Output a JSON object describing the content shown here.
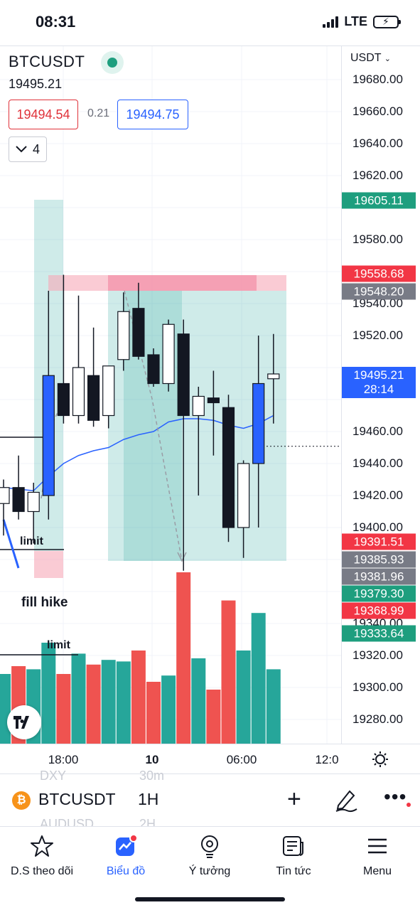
{
  "status_bar": {
    "time": "08:31",
    "network": "LTE"
  },
  "symbol": {
    "name": "BTCUSDT",
    "last_price": "19495.21",
    "bid": "19494.54",
    "spread": "0.21",
    "ask": "19494.75",
    "indicator_count": "4"
  },
  "price_axis": {
    "currency": "USDT",
    "ticks": [
      "19680.00",
      "19660.00",
      "19640.00",
      "19620.00",
      "19580.00",
      "19540.00",
      "19520.00",
      "19460.00",
      "19440.00",
      "19420.00",
      "19400.00",
      "19340.00",
      "19320.00",
      "19300.00",
      "19280.00"
    ],
    "badges": [
      {
        "value": "19605.11",
        "color": "#1e9e7e"
      },
      {
        "value": "19558.68",
        "color": "#f23645"
      },
      {
        "value": "19548.20",
        "color": "#787b86"
      },
      {
        "value": "19495.21",
        "sub": "28:14",
        "color": "#2962ff"
      },
      {
        "value": "19391.51",
        "color": "#f23645"
      },
      {
        "value": "19385.93",
        "color": "#787b86"
      },
      {
        "value": "19381.96",
        "color": "#787b86"
      },
      {
        "value": "19379.30",
        "color": "#1e9e7e"
      },
      {
        "value": "19368.99",
        "color": "#f23645"
      },
      {
        "value": "19333.64",
        "color": "#1e9e7e"
      }
    ]
  },
  "time_axis": {
    "ticks": [
      "18:00",
      "10",
      "06:00",
      "12:0"
    ]
  },
  "annotations": {
    "limit_1": "limit",
    "fill_hike": "fill hike",
    "limit_2": "limit"
  },
  "chart_data": {
    "type": "candlestick",
    "interval": "1H",
    "candles": [
      {
        "o": 19415,
        "h": 19430,
        "l": 19395,
        "c": 19425
      },
      {
        "o": 19425,
        "h": 19445,
        "l": 19405,
        "c": 19410
      },
      {
        "o": 19410,
        "h": 19428,
        "l": 19390,
        "c": 19422
      },
      {
        "o": 19420,
        "h": 19548,
        "l": 19405,
        "c": 19495
      },
      {
        "o": 19490,
        "h": 19558,
        "l": 19465,
        "c": 19470
      },
      {
        "o": 19470,
        "h": 19545,
        "l": 19465,
        "c": 19500
      },
      {
        "o": 19495,
        "h": 19525,
        "l": 19463,
        "c": 19467
      },
      {
        "o": 19470,
        "h": 19500,
        "l": 19462,
        "c": 19501
      },
      {
        "o": 19505,
        "h": 19547,
        "l": 19498,
        "c": 19535
      },
      {
        "o": 19537,
        "h": 19553,
        "l": 19505,
        "c": 19507
      },
      {
        "o": 19508,
        "h": 19512,
        "l": 19488,
        "c": 19490
      },
      {
        "o": 19490,
        "h": 19530,
        "l": 19485,
        "c": 19527
      },
      {
        "o": 19521,
        "h": 19530,
        "l": 19373,
        "c": 19470
      },
      {
        "o": 19470,
        "h": 19488,
        "l": 19420,
        "c": 19482
      },
      {
        "o": 19481,
        "h": 19498,
        "l": 19445,
        "c": 19478
      },
      {
        "o": 19475,
        "h": 19483,
        "l": 19391,
        "c": 19400
      },
      {
        "o": 19400,
        "h": 19442,
        "l": 19381,
        "c": 19440
      },
      {
        "o": 19440,
        "h": 19520,
        "l": 19400,
        "c": 19490
      },
      {
        "o": 19493,
        "h": 19521,
        "l": 19465,
        "c": 19496
      }
    ],
    "volume": [
      45,
      50,
      48,
      65,
      45,
      58,
      51,
      54,
      53,
      60,
      40,
      44,
      110,
      55,
      35,
      92,
      60,
      84,
      48
    ],
    "moving_average": [
      19425,
      19424,
      19423,
      19432,
      19440,
      19445,
      19448,
      19450,
      19455,
      19458,
      19460,
      19466,
      19468,
      19468,
      19467,
      19464,
      19462,
      19465,
      19470
    ]
  },
  "toolbar": {
    "symbol": "BTCUSDT",
    "timeframe": "1H",
    "ghost_1": "DXY",
    "ghost_2": "30m",
    "ghost_3": "AUDUSD",
    "ghost_4": "2H"
  },
  "tabs": [
    {
      "label": "D.S theo dõi",
      "icon": "star-icon"
    },
    {
      "label": "Biểu đồ",
      "icon": "chart-icon"
    },
    {
      "label": "Ý tưởng",
      "icon": "lightbulb-icon"
    },
    {
      "label": "Tin tức",
      "icon": "news-icon"
    },
    {
      "label": "Menu",
      "icon": "menu-icon"
    }
  ],
  "colors": {
    "up": "#131722",
    "down": "#ffffff",
    "bull_blue": "#2962ff",
    "vol_up": "#26a69a",
    "vol_down": "#ef5350",
    "accent": "#2962ff"
  }
}
